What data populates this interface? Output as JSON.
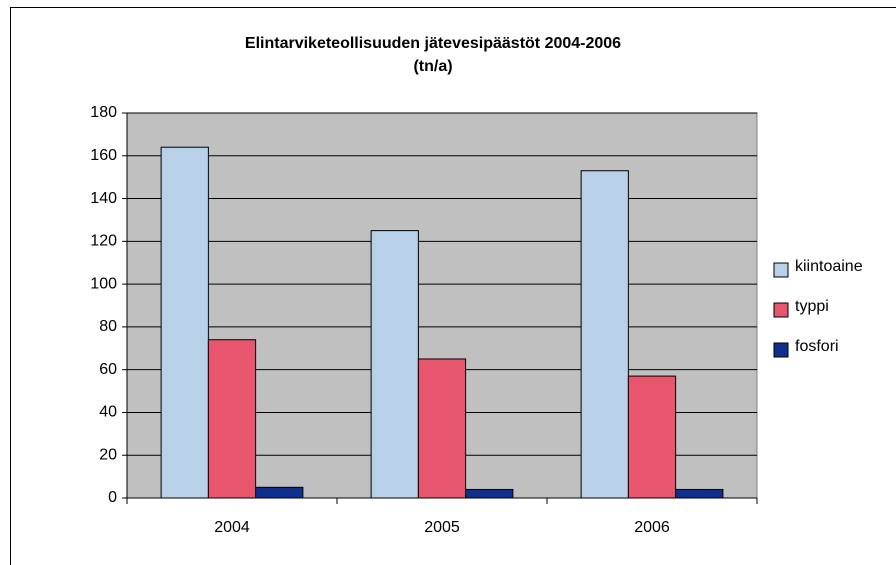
{
  "chart_data": {
    "type": "bar",
    "title": "Elintarviketeollisuuden jätevesipäästöt 2004-2006",
    "subtitle": "(tn/a)",
    "categories": [
      "2004",
      "2005",
      "2006"
    ],
    "series": [
      {
        "name": "kiintoaine",
        "color": "#b8d0e8",
        "values": [
          164,
          125,
          153
        ]
      },
      {
        "name": "typpi",
        "color": "#e8566e",
        "values": [
          74,
          65,
          57
        ]
      },
      {
        "name": "fosfori",
        "color": "#0f2f8f",
        "values": [
          5,
          4,
          4
        ]
      }
    ],
    "ylim": [
      0,
      180
    ],
    "yticks": [
      0,
      20,
      40,
      60,
      80,
      100,
      120,
      140,
      160,
      180
    ],
    "grid": true,
    "legend": "right",
    "plot_background": "#c0c0c0"
  }
}
